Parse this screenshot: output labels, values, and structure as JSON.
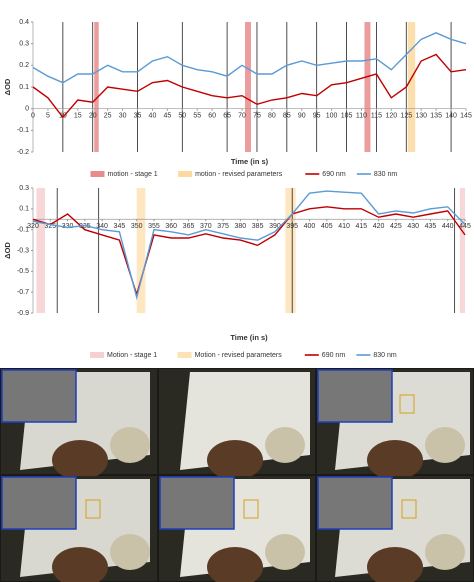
{
  "chart_data": [
    {
      "type": "line",
      "x_label": "Time (in s)",
      "y_label": "ΔOD",
      "x": [
        0,
        5,
        10,
        15,
        20,
        25,
        30,
        35,
        40,
        45,
        50,
        55,
        60,
        65,
        70,
        75,
        80,
        85,
        90,
        95,
        100,
        105,
        110,
        115,
        120,
        125,
        130,
        135,
        140,
        145
      ],
      "series": [
        {
          "name": "690 nm",
          "color": "#c00000",
          "values": [
            0.1,
            0.05,
            -0.04,
            0.04,
            0.03,
            0.1,
            0.09,
            0.08,
            0.12,
            0.13,
            0.1,
            0.08,
            0.06,
            0.05,
            0.06,
            0.02,
            0.04,
            0.05,
            0.07,
            0.06,
            0.11,
            0.12,
            0.14,
            0.16,
            0.05,
            0.1,
            0.22,
            0.25,
            0.17,
            0.18
          ]
        },
        {
          "name": "830 nm",
          "color": "#5b9bd5",
          "values": [
            0.19,
            0.15,
            0.12,
            0.16,
            0.16,
            0.2,
            0.17,
            0.17,
            0.22,
            0.24,
            0.2,
            0.18,
            0.17,
            0.15,
            0.2,
            0.16,
            0.16,
            0.2,
            0.22,
            0.2,
            0.21,
            0.22,
            0.22,
            0.23,
            0.18,
            0.25,
            0.32,
            0.35,
            0.32,
            0.3
          ]
        }
      ],
      "regions": [
        {
          "name": "motion - stage 1",
          "color": "#e88b8b",
          "spans": [
            [
              20.5,
              22
            ],
            [
              71,
              73
            ],
            [
              111,
              113
            ]
          ]
        },
        {
          "name": "motion - revised parameters",
          "color": "#fcd9a0",
          "spans": [
            [
              125.5,
              128
            ]
          ]
        }
      ],
      "markers": [
        10,
        20,
        35,
        50,
        65,
        75,
        85,
        95,
        105,
        115,
        125,
        140
      ],
      "xlim": [
        0,
        145
      ],
      "xticks": [
        0,
        5,
        10,
        15,
        20,
        25,
        30,
        35,
        40,
        45,
        50,
        55,
        60,
        65,
        70,
        75,
        80,
        85,
        90,
        95,
        100,
        105,
        110,
        115,
        120,
        125,
        130,
        135,
        140,
        145
      ],
      "ylim": [
        -0.2,
        0.4
      ],
      "yticks": [
        -0.2,
        -0.1,
        0,
        0.1,
        0.2,
        0.3,
        0.4
      ],
      "grid": false
    },
    {
      "type": "line",
      "x_label": "Time (in s)",
      "y_label": "ΔOD",
      "x": [
        320,
        325,
        330,
        335,
        340,
        345,
        350,
        355,
        360,
        365,
        370,
        375,
        380,
        385,
        390,
        395,
        400,
        405,
        410,
        415,
        420,
        425,
        430,
        435,
        440,
        445
      ],
      "series": [
        {
          "name": "690 nm",
          "color": "#c00000",
          "values": [
            0.0,
            -0.05,
            0.05,
            -0.1,
            -0.15,
            -0.2,
            -0.72,
            -0.15,
            -0.18,
            -0.18,
            -0.14,
            -0.18,
            -0.2,
            -0.25,
            -0.15,
            0.05,
            0.1,
            0.12,
            0.1,
            0.1,
            0.02,
            0.05,
            0.02,
            0.05,
            0.08,
            -0.15
          ]
        },
        {
          "name": "830 nm",
          "color": "#5b9bd5",
          "values": [
            -0.02,
            -0.05,
            -0.08,
            -0.06,
            -0.1,
            -0.12,
            -0.75,
            -0.1,
            -0.12,
            -0.15,
            -0.1,
            -0.14,
            -0.18,
            -0.2,
            -0.12,
            0.05,
            0.25,
            0.27,
            0.26,
            0.25,
            0.05,
            0.08,
            0.06,
            0.1,
            0.12,
            -0.05
          ]
        }
      ],
      "regions": [
        {
          "name": "Motion - stage 1",
          "color": "#f6d0d0",
          "spans": [
            [
              321,
              323.5
            ],
            [
              443.5,
              445
            ]
          ]
        },
        {
          "name": "Motion - revised parameters",
          "color": "#fde2b5",
          "spans": [
            [
              350,
              352.5
            ],
            [
              393,
              396
            ]
          ]
        }
      ],
      "markers": [
        327,
        339,
        395,
        442
      ],
      "xlim": [
        320,
        445
      ],
      "xticks": [
        320,
        325,
        330,
        335,
        340,
        345,
        350,
        355,
        360,
        365,
        370,
        375,
        380,
        385,
        390,
        395,
        400,
        405,
        410,
        415,
        420,
        425,
        430,
        435,
        440,
        445
      ],
      "ylim": [
        -0.9,
        0.3
      ],
      "yticks": [
        -0.9,
        -0.7,
        -0.5,
        -0.3,
        -0.1,
        0.1,
        0.3
      ],
      "grid": false
    }
  ]
}
